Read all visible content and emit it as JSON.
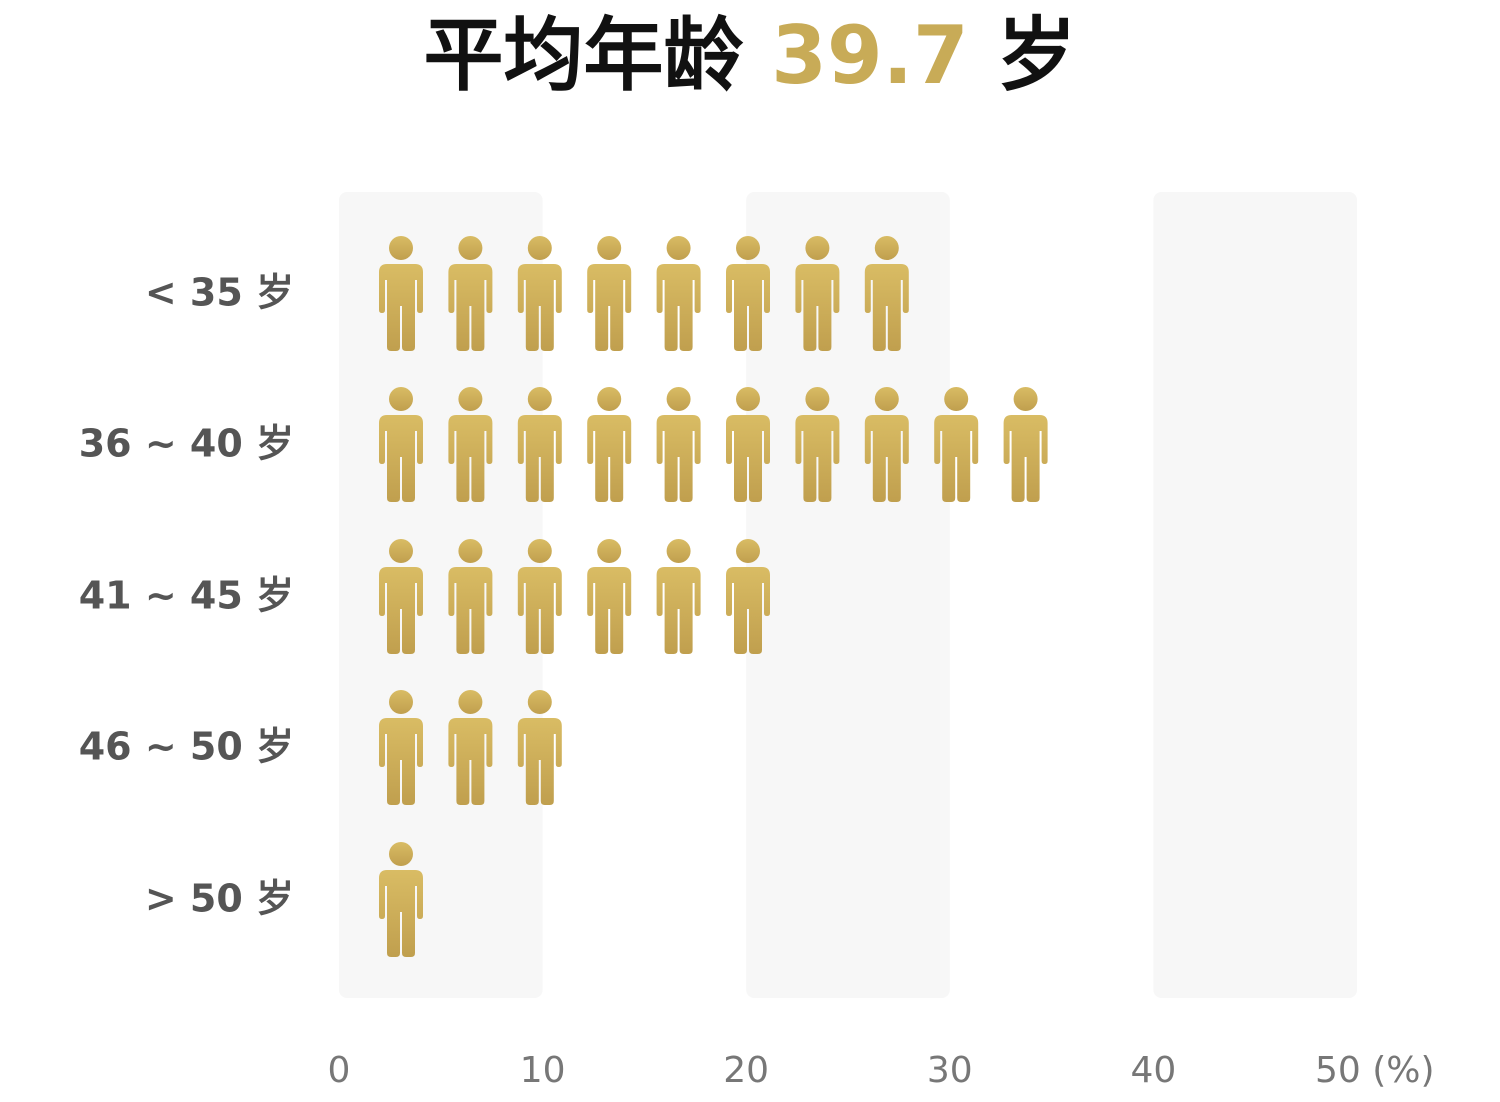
{
  "title": {
    "prefix": "平均年龄",
    "value": "39.7",
    "suffix": "岁"
  },
  "colors": {
    "icon_top": "#d9bc64",
    "icon_bottom": "#c09f4e",
    "band": "#f7f7f7",
    "label": "#555555",
    "tick": "#777777"
  },
  "chart_data": {
    "type": "bar",
    "title": "平均年龄 39.7 岁",
    "categories": [
      "< 35 岁",
      "36 ~ 40 岁",
      "41 ~ 45 岁",
      "46 ~ 50 岁",
      "> 50 岁"
    ],
    "values": [
      25,
      31,
      19,
      10,
      3
    ],
    "xlim": [
      0,
      50
    ],
    "x_ticks": [
      0,
      10,
      20,
      30,
      40,
      50
    ],
    "x_tick_labels": [
      "0",
      "10",
      "20",
      "30",
      "40",
      "50 (%)"
    ],
    "xlabel": "",
    "ylabel": "",
    "unit": "%",
    "mark": "person-icon",
    "percent_per_icon": 3.2,
    "icon_counts": [
      8,
      10,
      6,
      3,
      1
    ],
    "shaded_bands": [
      [
        0,
        10
      ],
      [
        20,
        30
      ],
      [
        40,
        50
      ]
    ],
    "grid": false,
    "legend": "none"
  }
}
